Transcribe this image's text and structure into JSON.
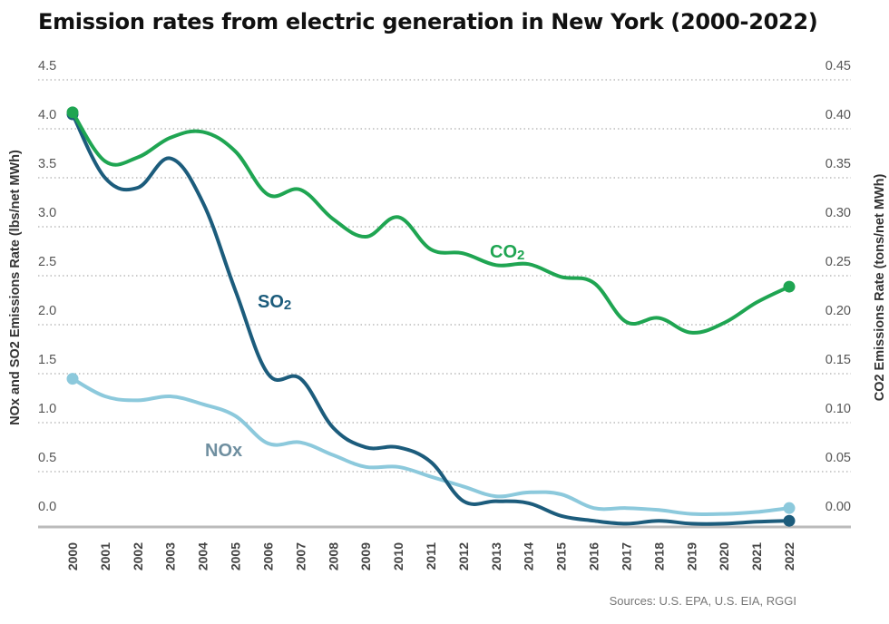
{
  "chart_data": {
    "type": "line",
    "title": "Emission rates from electric generation in New York (2000-2022)",
    "source": "Sources: U.S. EPA, U.S. EIA, RGGI",
    "x": [
      "2000",
      "2001",
      "2002",
      "2003",
      "2004",
      "2005",
      "2006",
      "2007",
      "2008",
      "2009",
      "2010",
      "2011",
      "2012",
      "2013",
      "2014",
      "2015",
      "2016",
      "2017",
      "2018",
      "2019",
      "2020",
      "2021",
      "2022"
    ],
    "y_left": {
      "label": "NOx and SO2 Emissions Rate (lbs/net MWh)",
      "range": [
        0,
        4.5
      ],
      "ticks": [
        "4.5",
        "4.0",
        "3.5",
        "3.0",
        "2.5",
        "2.0",
        "1.5",
        "1.0",
        "0.5",
        "0.0"
      ]
    },
    "y_right": {
      "label": "CO2 Emissions Rate (tons/net MWh)",
      "range": [
        0,
        0.45
      ],
      "ticks": [
        "0.45",
        "0.40",
        "0.35",
        "0.30",
        "0.25",
        "0.20",
        "0.15",
        "0.10",
        "0.05",
        "0.00"
      ]
    },
    "grid": true,
    "series": [
      {
        "name": "CO2",
        "name_base": "CO",
        "name_sub": "2",
        "axis": "right",
        "color": "#1fa552",
        "values": [
          0.402,
          0.352,
          0.356,
          0.376,
          0.382,
          0.362,
          0.318,
          0.323,
          0.293,
          0.275,
          0.295,
          0.262,
          0.258,
          0.246,
          0.247,
          0.234,
          0.228,
          0.188,
          0.192,
          0.177,
          0.187,
          0.208,
          0.224
        ]
      },
      {
        "name": "SO2",
        "name_base": "SO",
        "name_sub": "2",
        "axis": "left",
        "color": "#1c5c7c",
        "values": [
          4.0,
          3.35,
          3.25,
          3.55,
          3.1,
          2.2,
          1.35,
          1.3,
          0.8,
          0.6,
          0.6,
          0.45,
          0.05,
          0.05,
          0.03,
          -0.1,
          -0.15,
          -0.18,
          -0.15,
          -0.18,
          -0.18,
          -0.16,
          -0.15
        ]
      },
      {
        "name": "NOx",
        "axis": "left",
        "color": "#8cc9dc",
        "values": [
          1.3,
          1.12,
          1.08,
          1.12,
          1.04,
          0.92,
          0.64,
          0.65,
          0.52,
          0.4,
          0.4,
          0.3,
          0.2,
          0.1,
          0.14,
          0.12,
          -0.02,
          -0.02,
          -0.04,
          -0.08,
          -0.08,
          -0.06,
          -0.02
        ]
      }
    ]
  }
}
